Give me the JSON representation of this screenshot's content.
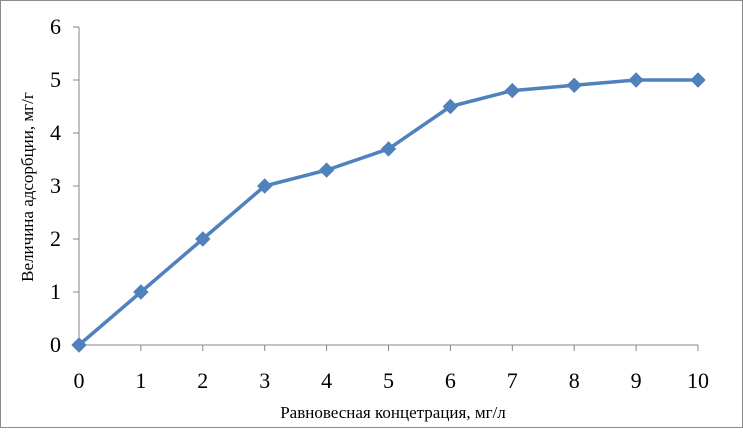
{
  "chart_data": {
    "type": "line",
    "title": "",
    "xlabel": "Равновесная концетрация, мг/л",
    "ylabel": "Величина адсорбции, мг/г",
    "x": [
      0,
      1,
      2,
      3,
      4,
      5,
      6,
      7,
      8,
      9,
      10
    ],
    "series": [
      {
        "values": [
          0,
          1,
          2,
          3,
          3.3,
          3.7,
          4.5,
          4.8,
          4.9,
          5,
          5
        ],
        "color": "#4f81bd",
        "marker": "diamond"
      }
    ],
    "xlim": [
      0,
      10
    ],
    "ylim": [
      0,
      6
    ],
    "xticks": [
      "0",
      "1",
      "2",
      "3",
      "4",
      "5",
      "6",
      "7",
      "8",
      "9",
      "10"
    ],
    "yticks": [
      "0",
      "1",
      "2",
      "3",
      "4",
      "5",
      "6"
    ],
    "grid": false,
    "legend": "none"
  }
}
